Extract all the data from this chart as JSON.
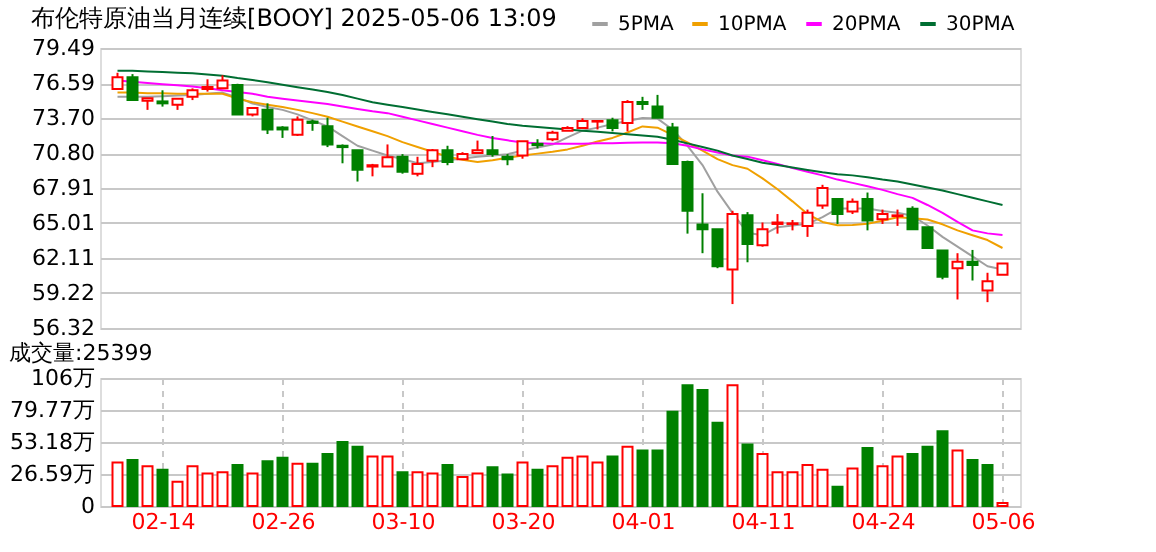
{
  "chart_data": [
    {
      "type": "candlestick",
      "title": "布伦特原油当月连续[BOOY] 2025-05-06 13:09",
      "ohlc": [
        [
          76.09,
          77.44,
          76.09,
          77.06
        ],
        [
          77.06,
          77.33,
          75.18,
          75.18
        ],
        [
          75.13,
          75.34,
          74.37,
          75.34
        ],
        [
          75.07,
          75.99,
          74.64,
          74.91
        ],
        [
          74.8,
          75.34,
          74.37,
          75.29
        ],
        [
          75.45,
          76.15,
          75.18,
          75.99
        ],
        [
          76.09,
          76.9,
          75.88,
          76.26
        ],
        [
          76.15,
          77.23,
          76.15,
          76.8
        ],
        [
          76.42,
          76.53,
          73.99,
          73.99
        ],
        [
          73.99,
          74.53,
          73.83,
          74.53
        ],
        [
          74.37,
          74.91,
          72.37,
          72.75
        ],
        [
          72.91,
          73.02,
          72.05,
          72.75
        ],
        [
          72.32,
          73.83,
          72.21,
          73.56
        ],
        [
          73.4,
          73.56,
          72.64,
          73.29
        ],
        [
          73.02,
          73.72,
          71.29,
          71.51
        ],
        [
          71.4,
          71.51,
          69.95,
          71.29
        ],
        [
          71.02,
          71.02,
          68.44,
          69.41
        ],
        [
          69.68,
          69.9,
          68.87,
          69.79
        ],
        [
          69.68,
          71.51,
          69.68,
          70.44
        ],
        [
          70.49,
          70.71,
          69.09,
          69.25
        ],
        [
          69.09,
          70.49,
          68.87,
          69.9
        ],
        [
          70.17,
          71.13,
          69.63,
          71.02
        ],
        [
          71.02,
          71.4,
          69.79,
          70.06
        ],
        [
          70.28,
          70.87,
          70.28,
          70.71
        ],
        [
          70.81,
          71.83,
          70.81,
          71.02
        ],
        [
          71.02,
          72.21,
          70.49,
          70.71
        ],
        [
          70.49,
          70.71,
          69.79,
          70.28
        ],
        [
          70.6,
          71.78,
          70.33,
          71.78
        ],
        [
          71.56,
          71.94,
          71.18,
          71.45
        ],
        [
          71.94,
          72.64,
          71.78,
          72.48
        ],
        [
          72.64,
          73.02,
          72.64,
          72.86
        ],
        [
          72.86,
          73.67,
          72.86,
          73.45
        ],
        [
          73.4,
          73.45,
          72.75,
          73.45
        ],
        [
          73.51,
          73.72,
          72.59,
          72.86
        ],
        [
          73.29,
          75.18,
          72.59,
          75.02
        ],
        [
          75.02,
          75.45,
          74.37,
          74.85
        ],
        [
          74.64,
          75.61,
          73.72,
          73.72
        ],
        [
          72.91,
          73.29,
          69.9,
          69.9
        ],
        [
          70.06,
          70.17,
          64.13,
          66.02
        ],
        [
          64.88,
          67.47,
          62.51,
          64.5
        ],
        [
          64.5,
          64.5,
          61.27,
          61.43
        ],
        [
          61.16,
          66.02,
          58.3,
          65.75
        ],
        [
          65.64,
          65.91,
          61.76,
          63.27
        ],
        [
          63.16,
          65.05,
          63.05,
          64.5
        ],
        [
          64.93,
          65.75,
          64.13,
          65.05
        ],
        [
          64.93,
          65.26,
          64.4,
          64.98
        ],
        [
          64.77,
          66.12,
          63.86,
          65.85
        ],
        [
          66.45,
          68.17,
          66.18,
          67.91
        ],
        [
          66.99,
          66.99,
          64.93,
          65.75
        ],
        [
          65.96,
          67.04,
          65.75,
          66.77
        ],
        [
          66.99,
          67.53,
          64.4,
          65.21
        ],
        [
          65.31,
          66.12,
          64.93,
          65.75
        ],
        [
          65.58,
          66.12,
          64.77,
          65.64
        ],
        [
          66.18,
          66.39,
          64.5,
          64.5
        ],
        [
          64.66,
          64.66,
          62.94,
          62.94
        ],
        [
          62.73,
          62.73,
          60.35,
          60.57
        ],
        [
          61.27,
          62.51,
          58.68,
          61.81
        ],
        [
          61.81,
          62.78,
          60.25,
          61.54
        ],
        [
          59.43,
          60.89,
          58.46,
          60.19
        ],
        [
          60.73,
          61.65,
          60.73,
          61.65
        ]
      ],
      "colors": [
        "#ff0000",
        "#008000",
        "#ff0000",
        "#008000",
        "#ff0000",
        "#ff0000",
        "#ff0000",
        "#ff0000",
        "#008000",
        "#ff0000",
        "#008000",
        "#008000",
        "#ff0000",
        "#008000",
        "#008000",
        "#008000",
        "#008000",
        "#ff0000",
        "#ff0000",
        "#008000",
        "#ff0000",
        "#ff0000",
        "#008000",
        "#ff0000",
        "#ff0000",
        "#008000",
        "#008000",
        "#ff0000",
        "#008000",
        "#ff0000",
        "#ff0000",
        "#ff0000",
        "#ff0000",
        "#008000",
        "#ff0000",
        "#008000",
        "#008000",
        "#008000",
        "#008000",
        "#008000",
        "#008000",
        "#ff0000",
        "#008000",
        "#ff0000",
        "#ff0000",
        "#ff0000",
        "#ff0000",
        "#ff0000",
        "#008000",
        "#ff0000",
        "#008000",
        "#ff0000",
        "#ff0000",
        "#008000",
        "#008000",
        "#008000",
        "#ff0000",
        "#008000",
        "#ff0000",
        "#ff0000"
      ],
      "series": [
        {
          "name": "5PMA",
          "type": "line",
          "color": "#a0a0a0",
          "values": [
            75.45,
            75.45,
            75.45,
            75.5,
            75.55,
            75.6,
            75.7,
            75.8,
            75.4,
            74.9,
            74.6,
            74.37,
            74.0,
            73.5,
            73.0,
            72.2,
            71.4,
            71.0,
            70.6,
            70.3,
            69.95,
            70.05,
            70.2,
            70.35,
            70.5,
            70.6,
            70.7,
            71.0,
            71.25,
            71.5,
            72.1,
            72.65,
            72.9,
            73.2,
            73.45,
            73.7,
            73.65,
            72.75,
            71.4,
            69.8,
            67.6,
            65.85,
            64.2,
            64.0,
            64.66,
            64.8,
            64.94,
            65.5,
            66.2,
            66.2,
            66.2,
            66.0,
            65.85,
            65.6,
            64.8,
            63.86,
            63.05,
            62.24,
            61.43,
            61.16
          ]
        },
        {
          "name": "10PMA",
          "type": "line",
          "color": "#f0a000",
          "values": [
            75.8,
            75.8,
            75.75,
            75.75,
            75.7,
            75.7,
            75.7,
            75.7,
            75.3,
            75.0,
            74.8,
            74.6,
            74.37,
            74.1,
            73.8,
            73.4,
            73.0,
            72.6,
            72.2,
            71.7,
            71.3,
            70.9,
            70.5,
            70.25,
            70.06,
            70.2,
            70.4,
            70.6,
            70.75,
            70.9,
            71.1,
            71.4,
            71.75,
            72.05,
            72.5,
            73.0,
            72.9,
            72.3,
            71.67,
            71.0,
            70.3,
            69.8,
            69.5,
            68.7,
            67.8,
            66.8,
            65.75,
            65.1,
            64.83,
            64.85,
            64.94,
            65.2,
            65.48,
            65.4,
            65.3,
            64.9,
            64.4,
            64.0,
            63.6,
            62.94
          ]
        },
        {
          "name": "20PMA",
          "type": "line",
          "color": "#ff00ff",
          "values": [
            76.8,
            76.7,
            76.6,
            76.5,
            76.4,
            76.3,
            76.15,
            76.0,
            75.85,
            75.7,
            75.45,
            75.3,
            75.15,
            75.0,
            74.85,
            74.65,
            74.45,
            74.25,
            74.1,
            73.8,
            73.5,
            73.2,
            72.9,
            72.6,
            72.3,
            72.05,
            71.85,
            71.67,
            71.6,
            71.56,
            71.56,
            71.56,
            71.6,
            71.6,
            71.65,
            71.67,
            71.67,
            71.6,
            71.4,
            71.1,
            70.85,
            70.6,
            70.5,
            70.2,
            69.9,
            69.55,
            69.25,
            68.95,
            68.6,
            68.33,
            68.05,
            67.75,
            67.4,
            67.09,
            66.5,
            65.85,
            65.1,
            64.4,
            64.15,
            64.02
          ]
        },
        {
          "name": "30PMA",
          "type": "line",
          "color": "#006e32",
          "values": [
            77.6,
            77.6,
            77.55,
            77.5,
            77.45,
            77.4,
            77.3,
            77.2,
            77.0,
            76.85,
            76.65,
            76.45,
            76.25,
            76.05,
            75.85,
            75.6,
            75.3,
            75.0,
            74.8,
            74.6,
            74.4,
            74.2,
            74.0,
            73.8,
            73.6,
            73.4,
            73.2,
            73.05,
            72.95,
            72.85,
            72.75,
            72.65,
            72.55,
            72.45,
            72.35,
            72.25,
            72.15,
            71.9,
            71.6,
            71.3,
            71.0,
            70.6,
            70.3,
            70.0,
            69.8,
            69.6,
            69.4,
            69.2,
            69.05,
            68.95,
            68.8,
            68.6,
            68.45,
            68.2,
            67.95,
            67.7,
            67.4,
            67.1,
            66.8,
            66.5
          ]
        }
      ],
      "ylim": [
        56.32,
        79.49
      ],
      "yticks": [
        79.49,
        76.59,
        {
          "value": 73.7,
          "label": "73.70"
        },
        {
          "value": 70.8,
          "label": "70.80"
        },
        67.91,
        65.01,
        62.11,
        59.22,
        56.32
      ],
      "grid": true,
      "legend": "top right",
      "tick_labels": "y"
    },
    {
      "type": "bar",
      "title": "成交量:25399",
      "categories": [
        null,
        null,
        null,
        "02-14",
        null,
        null,
        null,
        null,
        null,
        null,
        null,
        "02-26",
        null,
        null,
        null,
        null,
        null,
        null,
        null,
        "03-10",
        null,
        null,
        null,
        null,
        null,
        null,
        null,
        "03-20",
        null,
        null,
        null,
        null,
        null,
        null,
        null,
        "04-01",
        null,
        null,
        null,
        null,
        null,
        null,
        null,
        "04-11",
        null,
        null,
        null,
        null,
        null,
        null,
        null,
        "04-24",
        null,
        null,
        null,
        null,
        null,
        null,
        null,
        "05-06"
      ],
      "values": [
        36,
        38,
        33,
        30,
        20,
        33,
        27,
        28,
        34,
        27,
        37,
        40,
        35,
        35,
        43,
        53,
        49,
        41,
        41,
        28,
        28,
        27,
        34,
        24,
        27,
        32,
        26,
        36,
        30,
        33,
        40,
        41,
        36,
        41,
        49,
        46,
        46,
        78,
        100,
        96,
        69,
        100,
        51,
        43,
        28,
        28,
        34,
        30,
        16,
        31,
        48,
        33,
        41,
        43,
        49,
        62,
        46,
        38,
        34,
        2.54
      ],
      "colors": [
        "#ff0000",
        "#008000",
        "#ff0000",
        "#008000",
        "#ff0000",
        "#ff0000",
        "#ff0000",
        "#ff0000",
        "#008000",
        "#ff0000",
        "#008000",
        "#008000",
        "#ff0000",
        "#008000",
        "#008000",
        "#008000",
        "#008000",
        "#ff0000",
        "#ff0000",
        "#008000",
        "#ff0000",
        "#ff0000",
        "#008000",
        "#ff0000",
        "#ff0000",
        "#008000",
        "#008000",
        "#ff0000",
        "#008000",
        "#ff0000",
        "#ff0000",
        "#ff0000",
        "#ff0000",
        "#008000",
        "#ff0000",
        "#008000",
        "#008000",
        "#008000",
        "#008000",
        "#008000",
        "#008000",
        "#ff0000",
        "#008000",
        "#ff0000",
        "#ff0000",
        "#ff0000",
        "#ff0000",
        "#ff0000",
        "#008000",
        "#ff0000",
        "#008000",
        "#ff0000",
        "#ff0000",
        "#008000",
        "#008000",
        "#008000",
        "#ff0000",
        "#008000",
        "#008000",
        "#ff0000"
      ],
      "ylim": [
        0,
        106
      ],
      "yticks": [
        {
          "value": 106,
          "label": "106万"
        },
        {
          "value": 79.77,
          "label": "79.77万"
        },
        {
          "value": 53.18,
          "label": "53.18万"
        },
        {
          "value": 26.59,
          "label": "26.59万"
        },
        0
      ],
      "grid": true
    }
  ]
}
